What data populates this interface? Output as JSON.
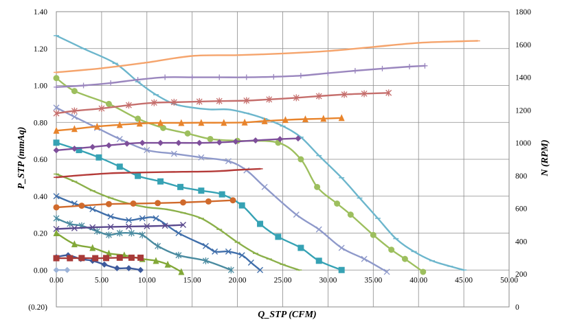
{
  "chart_data": {
    "type": "line",
    "xlabel": "Q_STP (CFM)",
    "ylabel": "P_STP (mmAq)",
    "y2label": "N (RPM)",
    "xlim": [
      0,
      50
    ],
    "ylim": [
      -0.2,
      1.4
    ],
    "y2lim": [
      0,
      1800
    ],
    "xticks": [
      "0.00",
      "5.00",
      "10.00",
      "15.00",
      "20.00",
      "25.00",
      "30.00",
      "35.00",
      "40.00",
      "45.00",
      "50.00"
    ],
    "yticks": [
      "(0.20)",
      "0.00",
      "0.20",
      "0.40",
      "0.60",
      "0.80",
      "1.00",
      "1.20",
      "1.40"
    ],
    "y2ticks": [
      "0",
      "200",
      "400",
      "600",
      "800",
      "1000",
      "1200",
      "1400",
      "1600",
      "1800"
    ],
    "grid": true,
    "series": [
      {
        "axis": "y",
        "color": "#6cb6cc",
        "marker": "dash",
        "x": [
          0,
          3,
          6.5,
          9,
          11,
          13,
          15,
          17,
          19,
          21,
          23,
          25,
          27,
          29,
          31.5,
          33.5,
          35.5,
          37.5,
          39.5,
          41.5,
          43.5,
          45
        ],
        "y": [
          1.27,
          1.2,
          1.12,
          1.02,
          0.95,
          0.9,
          0.88,
          0.87,
          0.87,
          0.85,
          0.82,
          0.78,
          0.72,
          0.62,
          0.5,
          0.39,
          0.28,
          0.17,
          0.1,
          0.05,
          0.02,
          0
        ]
      },
      {
        "axis": "y",
        "color": "#9dbf5e",
        "marker": "circle",
        "x": [
          0,
          2,
          5.8,
          9,
          11.8,
          14.5,
          17,
          20,
          24.5,
          27,
          28.8,
          31,
          32.5,
          35,
          37,
          38.5,
          40.5
        ],
        "y": [
          1.04,
          0.97,
          0.9,
          0.82,
          0.77,
          0.74,
          0.71,
          0.7,
          0.69,
          0.6,
          0.45,
          0.36,
          0.3,
          0.19,
          0.11,
          0.06,
          -0.01
        ]
      },
      {
        "axis": "y",
        "color": "#8e99ca",
        "marker": "x",
        "x": [
          0,
          2,
          4.5,
          7,
          10,
          13,
          16,
          19,
          21,
          23,
          26.5,
          29,
          31.5,
          34,
          36.5
        ],
        "y": [
          0.88,
          0.83,
          0.77,
          0.71,
          0.65,
          0.63,
          0.61,
          0.59,
          0.54,
          0.45,
          0.3,
          0.22,
          0.12,
          0.06,
          -0.01
        ]
      },
      {
        "axis": "y",
        "color": "#36a2b4",
        "marker": "square",
        "x": [
          0,
          2.5,
          4.7,
          7,
          9,
          11.5,
          13.7,
          16,
          18.3,
          20.5,
          22.5,
          24.5,
          27,
          29,
          31.5
        ],
        "y": [
          0.69,
          0.65,
          0.61,
          0.56,
          0.51,
          0.48,
          0.45,
          0.43,
          0.41,
          0.35,
          0.25,
          0.18,
          0.12,
          0.05,
          0
        ]
      },
      {
        "axis": "y",
        "color": "#8bb04a",
        "marker": "dash",
        "x": [
          0,
          2,
          4,
          6,
          8,
          10,
          12,
          14,
          16,
          18,
          20,
          22,
          23.5,
          25,
          26.8
        ],
        "y": [
          0.52,
          0.48,
          0.43,
          0.39,
          0.36,
          0.34,
          0.33,
          0.31,
          0.28,
          0.22,
          0.15,
          0.09,
          0.06,
          0.03,
          0
        ]
      },
      {
        "axis": "y",
        "color": "#3f6eaa",
        "marker": "x",
        "x": [
          0,
          2,
          4,
          6,
          8,
          9.5,
          11,
          13.5,
          16.5,
          17.5,
          19,
          20.5,
          21.5,
          22.5
        ],
        "y": [
          0.4,
          0.36,
          0.33,
          0.29,
          0.27,
          0.28,
          0.28,
          0.2,
          0.13,
          0.1,
          0.1,
          0.08,
          0.04,
          0
        ]
      },
      {
        "axis": "y",
        "color": "#4a8ba0",
        "marker": "star",
        "x": [
          0,
          1.5,
          2.8,
          4.5,
          5.8,
          7,
          8.3,
          9.5,
          11.2,
          13.5,
          16.5,
          19.3
        ],
        "y": [
          0.28,
          0.25,
          0.24,
          0.21,
          0.19,
          0.2,
          0.2,
          0.19,
          0.13,
          0.08,
          0.05,
          0
        ]
      },
      {
        "axis": "y",
        "color": "#82a838",
        "marker": "triangle",
        "x": [
          0,
          2,
          4,
          5.8,
          7.5,
          9.5,
          11,
          12.3,
          13.8
        ],
        "y": [
          0.2,
          0.14,
          0.12,
          0.09,
          0.08,
          0.06,
          0.05,
          0.03,
          -0.01
        ]
      },
      {
        "axis": "y",
        "color": "#3d5a9c",
        "marker": "diamond",
        "x": [
          0,
          1.3,
          2.7,
          4,
          5.3,
          6.7,
          8,
          9.3
        ],
        "y": [
          0.07,
          0.08,
          0.06,
          0.05,
          0.03,
          0.01,
          0.01,
          0
        ]
      },
      {
        "axis": "y",
        "color": "#9cb3d8",
        "marker": "diamond",
        "x": [
          0,
          1.2
        ],
        "y": [
          0,
          0
        ]
      },
      {
        "axis": "y2",
        "color": "#f5a46c",
        "marker": "dash",
        "x": [
          0,
          5,
          10,
          15,
          20,
          25,
          30,
          35,
          40,
          45,
          46.5
        ],
        "y": [
          1430,
          1455,
          1490,
          1530,
          1535,
          1545,
          1560,
          1585,
          1610,
          1620,
          1622
        ]
      },
      {
        "axis": "y2",
        "color": "#9a86be",
        "marker": "plus",
        "x": [
          0,
          3,
          6,
          9,
          12,
          15,
          18,
          21,
          24,
          27,
          30,
          33,
          36,
          39,
          40.7
        ],
        "y": [
          1340,
          1350,
          1365,
          1385,
          1400,
          1400,
          1400,
          1400,
          1403,
          1410,
          1425,
          1440,
          1453,
          1465,
          1470
        ]
      },
      {
        "axis": "y2",
        "color": "#c56e6c",
        "marker": "star",
        "x": [
          0,
          2,
          5,
          8,
          10.8,
          13,
          15.8,
          18,
          21,
          23.5,
          26.5,
          29,
          31.8,
          34,
          36.7
        ],
        "y": [
          1180,
          1195,
          1210,
          1230,
          1245,
          1248,
          1252,
          1255,
          1258,
          1265,
          1275,
          1285,
          1295,
          1300,
          1305
        ]
      },
      {
        "axis": "y2",
        "color": "#e8842c",
        "marker": "triangle",
        "x": [
          0,
          2,
          4.5,
          7,
          9.2,
          11.5,
          13.8,
          16,
          18.5,
          20.8,
          23,
          25.3,
          27.5,
          29.5,
          31.5
        ],
        "y": [
          1075,
          1085,
          1100,
          1110,
          1118,
          1122,
          1122,
          1123,
          1123,
          1125,
          1133,
          1140,
          1145,
          1148,
          1152
        ]
      },
      {
        "axis": "y2",
        "color": "#7e4f9a",
        "marker": "diamond",
        "x": [
          0,
          2,
          4,
          5.8,
          7.8,
          9.5,
          11.5,
          13.5,
          15.8,
          18,
          19.8,
          22,
          24.7,
          26.7
        ],
        "y": [
          955,
          965,
          975,
          985,
          995,
          1000,
          1000,
          1000,
          1000,
          1003,
          1008,
          1015,
          1023,
          1027
        ]
      },
      {
        "axis": "y2",
        "color": "#b43a38",
        "marker": "dash",
        "x": [
          0,
          2,
          4,
          6,
          8,
          10,
          12,
          14,
          16,
          18,
          20,
          22.5
        ],
        "y": [
          790,
          800,
          808,
          815,
          818,
          820,
          822,
          824,
          825,
          828,
          835,
          842
        ]
      },
      {
        "axis": "y2",
        "color": "#d06a2c",
        "marker": "circle",
        "x": [
          0,
          2.8,
          5.8,
          8.5,
          11.2,
          14,
          16.8,
          19.5
        ],
        "y": [
          607,
          617,
          627,
          630,
          633,
          637,
          643,
          650
        ]
      },
      {
        "axis": "y2",
        "color": "#5b4a8e",
        "marker": "x",
        "x": [
          0,
          2,
          4,
          6,
          8,
          10,
          12,
          14
        ],
        "y": [
          475,
          480,
          485,
          488,
          490,
          492,
          495,
          500
        ]
      },
      {
        "axis": "y2",
        "color": "#a83a38",
        "marker": "square",
        "x": [
          0,
          1.5,
          2.8,
          4.3,
          5.5,
          7,
          8.3,
          9.3
        ],
        "y": [
          297,
          297,
          298,
          297,
          298,
          300,
          300,
          300
        ]
      }
    ]
  }
}
